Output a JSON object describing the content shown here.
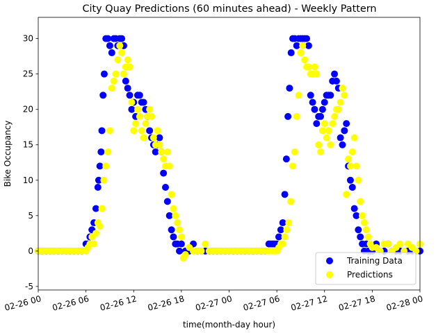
{
  "chart_data": {
    "type": "scatter",
    "title": "City Quay Predictions (60 minutes ahead) - Weekly Pattern",
    "xlabel": "time(month-day hour)",
    "ylabel": "Bike Occupancy",
    "xlim": [
      0,
      48
    ],
    "ylim": [
      -5.5,
      33
    ],
    "x_unit": "hours since 02-26 00",
    "x_ticks": [
      {
        "value": 0,
        "label": "02-26 00"
      },
      {
        "value": 6,
        "label": "02-26 06"
      },
      {
        "value": 12,
        "label": "02-26 12"
      },
      {
        "value": 18,
        "label": "02-26 18"
      },
      {
        "value": 24,
        "label": "02-27 00"
      },
      {
        "value": 30,
        "label": "02-27 06"
      },
      {
        "value": 36,
        "label": "02-27 12"
      },
      {
        "value": 42,
        "label": "02-27 18"
      },
      {
        "value": 48,
        "label": "02-28 00"
      }
    ],
    "y_ticks": [
      -5,
      0,
      5,
      10,
      15,
      20,
      25,
      30
    ],
    "grid": false,
    "legend_position": "bottom-right",
    "series": [
      {
        "name": "Training Data",
        "color": "#0000ff",
        "points": [
          [
            0,
            0
          ],
          [
            0.5,
            0
          ],
          [
            1,
            0
          ],
          [
            1.5,
            0
          ],
          [
            2,
            0
          ],
          [
            2.5,
            0
          ],
          [
            3,
            0
          ],
          [
            3.5,
            0
          ],
          [
            4,
            0
          ],
          [
            4.5,
            0
          ],
          [
            5,
            0
          ],
          [
            5.5,
            0
          ],
          [
            6,
            1
          ],
          [
            6.25,
            1
          ],
          [
            6.5,
            2
          ],
          [
            6.75,
            3
          ],
          [
            7,
            4
          ],
          [
            7.25,
            6
          ],
          [
            7.5,
            9
          ],
          [
            7.6,
            10
          ],
          [
            7.75,
            12
          ],
          [
            7.9,
            14
          ],
          [
            8,
            17
          ],
          [
            8.15,
            22
          ],
          [
            8.3,
            25
          ],
          [
            8.5,
            30
          ],
          [
            8.75,
            30
          ],
          [
            9,
            29
          ],
          [
            9.25,
            28
          ],
          [
            9.5,
            30
          ],
          [
            9.75,
            30
          ],
          [
            10,
            29
          ],
          [
            10.25,
            30
          ],
          [
            10.5,
            30
          ],
          [
            10.75,
            29
          ],
          [
            11,
            24
          ],
          [
            11.25,
            23
          ],
          [
            11.5,
            22
          ],
          [
            11.75,
            20
          ],
          [
            12,
            21
          ],
          [
            12.25,
            19
          ],
          [
            12.5,
            22
          ],
          [
            12.75,
            22
          ],
          [
            13,
            21
          ],
          [
            13.25,
            21
          ],
          [
            13.5,
            20
          ],
          [
            13.75,
            19
          ],
          [
            14,
            17
          ],
          [
            14.25,
            16
          ],
          [
            14.5,
            15
          ],
          [
            14.75,
            14
          ],
          [
            15,
            15
          ],
          [
            15.25,
            16
          ],
          [
            15.5,
            14
          ],
          [
            15.75,
            11
          ],
          [
            16,
            9
          ],
          [
            16.25,
            7
          ],
          [
            16.5,
            5
          ],
          [
            16.75,
            3
          ],
          [
            17,
            2
          ],
          [
            17.25,
            1
          ],
          [
            17.5,
            1
          ],
          [
            17.75,
            0
          ],
          [
            18,
            1
          ],
          [
            18.5,
            0
          ],
          [
            19,
            0
          ],
          [
            19.5,
            1
          ],
          [
            20,
            0
          ],
          [
            20.5,
            0
          ],
          [
            21,
            0
          ],
          [
            21.5,
            0
          ],
          [
            22,
            0
          ],
          [
            22.5,
            0
          ],
          [
            23,
            0
          ],
          [
            23.5,
            0
          ],
          [
            24,
            0
          ],
          [
            24.5,
            0
          ],
          [
            25,
            0
          ],
          [
            25.5,
            0
          ],
          [
            26,
            0
          ],
          [
            26.5,
            0
          ],
          [
            27,
            0
          ],
          [
            27.5,
            0
          ],
          [
            28,
            0
          ],
          [
            28.5,
            0
          ],
          [
            29,
            1
          ],
          [
            29.25,
            1
          ],
          [
            29.5,
            1
          ],
          [
            29.75,
            1
          ],
          [
            30,
            1
          ],
          [
            30.25,
            2
          ],
          [
            30.5,
            3
          ],
          [
            30.75,
            4
          ],
          [
            31,
            8
          ],
          [
            31.2,
            13
          ],
          [
            31.4,
            19
          ],
          [
            31.6,
            23
          ],
          [
            31.8,
            28
          ],
          [
            32,
            30
          ],
          [
            32.25,
            30
          ],
          [
            32.5,
            29
          ],
          [
            32.75,
            30
          ],
          [
            33,
            30
          ],
          [
            33.25,
            30
          ],
          [
            33.5,
            30
          ],
          [
            33.75,
            30
          ],
          [
            34,
            29
          ],
          [
            34.25,
            22
          ],
          [
            34.5,
            21
          ],
          [
            34.75,
            20
          ],
          [
            35,
            18
          ],
          [
            35.25,
            19
          ],
          [
            35.5,
            19
          ],
          [
            35.75,
            20
          ],
          [
            36,
            21
          ],
          [
            36.25,
            22
          ],
          [
            36.5,
            22
          ],
          [
            36.75,
            22
          ],
          [
            37,
            24
          ],
          [
            37.25,
            25
          ],
          [
            37.5,
            24
          ],
          [
            37.75,
            23
          ],
          [
            38,
            16
          ],
          [
            38.25,
            15
          ],
          [
            38.5,
            17
          ],
          [
            38.75,
            18
          ],
          [
            39,
            12
          ],
          [
            39.25,
            10
          ],
          [
            39.5,
            9
          ],
          [
            39.75,
            6
          ],
          [
            40,
            5
          ],
          [
            40.25,
            3
          ],
          [
            40.5,
            2
          ],
          [
            40.75,
            1
          ],
          [
            41,
            0
          ],
          [
            41.25,
            1
          ],
          [
            41.5,
            0
          ],
          [
            41.75,
            0
          ],
          [
            42,
            0
          ],
          [
            42.5,
            1
          ],
          [
            43,
            0
          ],
          [
            43.5,
            0
          ],
          [
            44,
            1
          ],
          [
            44.5,
            0
          ],
          [
            45,
            0
          ],
          [
            45.5,
            0
          ],
          [
            46,
            0
          ],
          [
            46.5,
            0
          ],
          [
            47,
            0
          ],
          [
            47.5,
            0
          ],
          [
            48,
            0
          ]
        ]
      },
      {
        "name": "Predictions",
        "color": "#ffff00",
        "points": [
          [
            0,
            0
          ],
          [
            0.5,
            0
          ],
          [
            1,
            0
          ],
          [
            1.5,
            0
          ],
          [
            2,
            0
          ],
          [
            2.5,
            0
          ],
          [
            3,
            0
          ],
          [
            3.5,
            0
          ],
          [
            4,
            0
          ],
          [
            4.5,
            0
          ],
          [
            5,
            0
          ],
          [
            5.5,
            0
          ],
          [
            6,
            0
          ],
          [
            6.25,
            0.5
          ],
          [
            6.5,
            1
          ],
          [
            6.75,
            2
          ],
          [
            7,
            1
          ],
          [
            7.25,
            2.5
          ],
          [
            7.5,
            4
          ],
          [
            7.75,
            3.5
          ],
          [
            8,
            6
          ],
          [
            8.25,
            10
          ],
          [
            8.5,
            12
          ],
          [
            8.75,
            14
          ],
          [
            9,
            17
          ],
          [
            9.25,
            23
          ],
          [
            9.5,
            24
          ],
          [
            9.75,
            25
          ],
          [
            10,
            27
          ],
          [
            10.25,
            29
          ],
          [
            10.5,
            28
          ],
          [
            10.75,
            25
          ],
          [
            11,
            26
          ],
          [
            11.25,
            27
          ],
          [
            11.5,
            26
          ],
          [
            11.75,
            21
          ],
          [
            12,
            17
          ],
          [
            12.25,
            18
          ],
          [
            12.5,
            20
          ],
          [
            12.75,
            19
          ],
          [
            13,
            17
          ],
          [
            13.25,
            16
          ],
          [
            13.5,
            18
          ],
          [
            13.75,
            19
          ],
          [
            14,
            20
          ],
          [
            14.25,
            19
          ],
          [
            14.5,
            16
          ],
          [
            14.75,
            15
          ],
          [
            15,
            17
          ],
          [
            15.25,
            15
          ],
          [
            15.5,
            14
          ],
          [
            15.75,
            13
          ],
          [
            16,
            12
          ],
          [
            16.25,
            14
          ],
          [
            16.5,
            12
          ],
          [
            16.75,
            8
          ],
          [
            17,
            6
          ],
          [
            17.25,
            5
          ],
          [
            17.5,
            4
          ],
          [
            17.75,
            3
          ],
          [
            18,
            2
          ],
          [
            18.25,
            -1
          ],
          [
            18.5,
            -0.5
          ],
          [
            19,
            0.5
          ],
          [
            19.5,
            0
          ],
          [
            20,
            0
          ],
          [
            20.5,
            0
          ],
          [
            21,
            1
          ],
          [
            21.5,
            0
          ],
          [
            22,
            0
          ],
          [
            22.5,
            0
          ],
          [
            23,
            0
          ],
          [
            23.5,
            0
          ],
          [
            24,
            0
          ],
          [
            24.5,
            0
          ],
          [
            25,
            0
          ],
          [
            25.5,
            0
          ],
          [
            26,
            0
          ],
          [
            26.5,
            0
          ],
          [
            27,
            0
          ],
          [
            27.5,
            0
          ],
          [
            28,
            0
          ],
          [
            28.5,
            0
          ],
          [
            29,
            0
          ],
          [
            29.5,
            0
          ],
          [
            30,
            0
          ],
          [
            30.25,
            0.5
          ],
          [
            30.5,
            1
          ],
          [
            30.75,
            1
          ],
          [
            31,
            2
          ],
          [
            31.25,
            3
          ],
          [
            31.5,
            4
          ],
          [
            31.75,
            7
          ],
          [
            32,
            12
          ],
          [
            32.25,
            14
          ],
          [
            32.5,
            19
          ],
          [
            32.75,
            22
          ],
          [
            33,
            28
          ],
          [
            33.25,
            29
          ],
          [
            33.5,
            27
          ],
          [
            33.75,
            26
          ],
          [
            34,
            26
          ],
          [
            34.25,
            25
          ],
          [
            34.5,
            25
          ],
          [
            34.75,
            26
          ],
          [
            35,
            25
          ],
          [
            35.25,
            15
          ],
          [
            35.5,
            14
          ],
          [
            35.75,
            17
          ],
          [
            36,
            18
          ],
          [
            36.25,
            16
          ],
          [
            36.5,
            17
          ],
          [
            36.75,
            15
          ],
          [
            37,
            18
          ],
          [
            37.25,
            19
          ],
          [
            37.5,
            20
          ],
          [
            37.75,
            20
          ],
          [
            38,
            21
          ],
          [
            38.25,
            23
          ],
          [
            38.5,
            22
          ],
          [
            38.75,
            8
          ],
          [
            39,
            13
          ],
          [
            39.25,
            12
          ],
          [
            39.5,
            14
          ],
          [
            39.75,
            16
          ],
          [
            40,
            12
          ],
          [
            40.25,
            10
          ],
          [
            40.5,
            7
          ],
          [
            40.75,
            5
          ],
          [
            41,
            4
          ],
          [
            41.25,
            3
          ],
          [
            41.5,
            2
          ],
          [
            41.75,
            1
          ],
          [
            42,
            0.5
          ],
          [
            42.5,
            0.5
          ],
          [
            43,
            0
          ],
          [
            43.5,
            1
          ],
          [
            44,
            1
          ],
          [
            44.5,
            0
          ],
          [
            45,
            0.5
          ],
          [
            45.5,
            1
          ],
          [
            46,
            0
          ],
          [
            46.5,
            1
          ],
          [
            47,
            0.5
          ],
          [
            47.5,
            0
          ],
          [
            48,
            1
          ]
        ]
      }
    ]
  }
}
